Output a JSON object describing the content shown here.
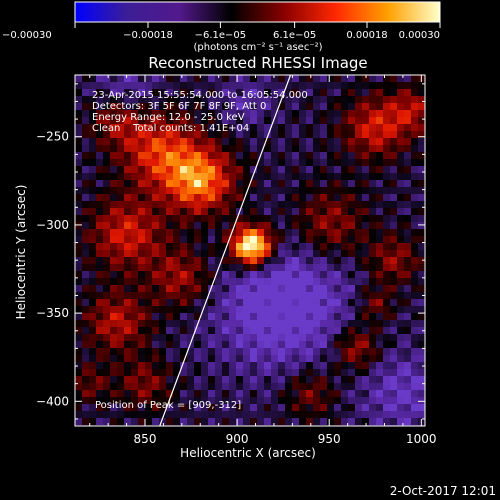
{
  "chart_data": {
    "type": "heatmap",
    "title": "Reconstructed RHESSI Image",
    "xlabel": "Heliocentric X (arcsec)",
    "ylabel": "Heliocentric Y (arcsec)",
    "xlim": [
      812,
      1002
    ],
    "ylim": [
      -414,
      -215
    ],
    "x_ticks": [
      850,
      900,
      950,
      1000
    ],
    "x_tick_labels": [
      "850",
      "900",
      "950",
      "1000"
    ],
    "y_ticks": [
      -250,
      -300,
      -350,
      -400
    ],
    "y_tick_labels": [
      "−250",
      "−300",
      "−350",
      "−400"
    ],
    "colorbar": {
      "range": [
        -0.0003,
        0.0003
      ],
      "tick_values": [
        -0.0003,
        -0.00018,
        -6.1e-05,
        6.1e-05,
        0.00018,
        0.0003
      ],
      "tick_labels": [
        "−0.00030",
        "−0.00018",
        "−6.1e−05",
        "6.1e−05",
        "0.00018",
        "0.00030"
      ],
      "unit_label": "(photons cm⁻² s⁻¹ asec⁻²)",
      "colors": [
        "#0000ff",
        "#3c1e96",
        "#52198c",
        "#000000",
        "#880000",
        "#ff2800",
        "#ffa000",
        "#ffffcc"
      ]
    },
    "annotations": [
      "23-Apr-2015 15:55:54.000 to 16:05:54.000",
      "Detectors: 3F 5F 6F 7F 8F 9F, Att 0",
      "Energy Range: 12.0 - 25.0 keV",
      "Clean    Total counts: 1.41E+04"
    ],
    "peak_label": "Position of Peak = [909,-312]",
    "peak": [
      909,
      -312
    ],
    "limb_line": [
      [
        858,
        -414
      ],
      [
        929,
        -215
      ]
    ],
    "sources": [
      {
        "x": 908,
        "y": -312,
        "sigma": 8,
        "amp": 1.0
      },
      {
        "x": 880,
        "y": -275,
        "sigma": 13,
        "amp": 0.6
      },
      {
        "x": 858,
        "y": -258,
        "sigma": 15,
        "amp": 0.45
      },
      {
        "x": 840,
        "y": -305,
        "sigma": 14,
        "amp": 0.4
      },
      {
        "x": 835,
        "y": -240,
        "sigma": 10,
        "amp": 0.3
      },
      {
        "x": 975,
        "y": -245,
        "sigma": 12,
        "amp": 0.4
      },
      {
        "x": 995,
        "y": -235,
        "sigma": 9,
        "amp": 0.3
      },
      {
        "x": 950,
        "y": -300,
        "sigma": 14,
        "amp": 0.3
      },
      {
        "x": 985,
        "y": -320,
        "sigma": 10,
        "amp": 0.28
      },
      {
        "x": 965,
        "y": -370,
        "sigma": 9,
        "amp": 0.35
      },
      {
        "x": 975,
        "y": -345,
        "sigma": 7,
        "amp": 0.25
      },
      {
        "x": 940,
        "y": -395,
        "sigma": 10,
        "amp": 0.25
      },
      {
        "x": 870,
        "y": -330,
        "sigma": 12,
        "amp": 0.32
      },
      {
        "x": 835,
        "y": -355,
        "sigma": 12,
        "amp": 0.35
      },
      {
        "x": 850,
        "y": -390,
        "sigma": 10,
        "amp": 0.25
      },
      {
        "x": 820,
        "y": -390,
        "sigma": 8,
        "amp": 0.2
      }
    ],
    "negative_regions": [
      {
        "x": 925,
        "y": -345,
        "sigma": 26,
        "amp": 0.35
      },
      {
        "x": 840,
        "y": -225,
        "sigma": 12,
        "amp": 0.2
      },
      {
        "x": 990,
        "y": -395,
        "sigma": 16,
        "amp": 0.22
      },
      {
        "x": 905,
        "y": -230,
        "sigma": 10,
        "amp": 0.15
      }
    ]
  },
  "footer": {
    "date": "2-Oct-2017 12:01"
  }
}
